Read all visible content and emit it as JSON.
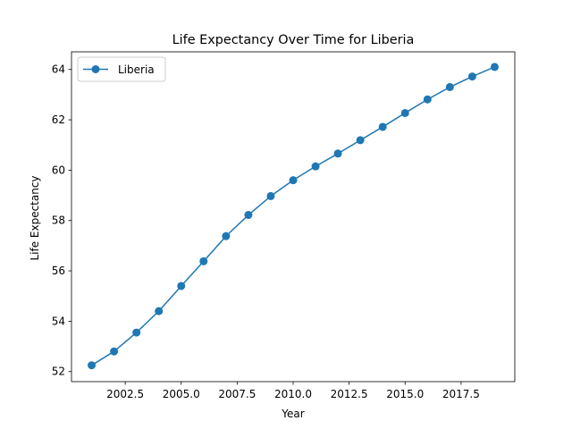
{
  "chart_data": {
    "type": "line",
    "title": "Life Expectancy Over Time for Liberia",
    "xlabel": "Year",
    "ylabel": "Life Expectancy",
    "xlim": [
      2000.1,
      2019.9
    ],
    "ylim": [
      51.6,
      64.7
    ],
    "xticks": [
      2002.5,
      2005.0,
      2007.5,
      2010.0,
      2012.5,
      2015.0,
      2017.5
    ],
    "xtick_labels": [
      "2002.5",
      "2005.0",
      "2007.5",
      "2010.0",
      "2012.5",
      "2015.0",
      "2017.5"
    ],
    "yticks": [
      52,
      54,
      56,
      58,
      60,
      62,
      64
    ],
    "ytick_labels": [
      "52",
      "54",
      "56",
      "58",
      "60",
      "62",
      "64"
    ],
    "grid": false,
    "legend_position": "top-left",
    "series": [
      {
        "name": "Liberia",
        "color": "#1f77b4",
        "marker": "circle",
        "x": [
          2001,
          2002,
          2003,
          2004,
          2005,
          2006,
          2007,
          2008,
          2009,
          2010,
          2011,
          2012,
          2013,
          2014,
          2015,
          2016,
          2017,
          2018,
          2019
        ],
        "y": [
          52.25,
          52.8,
          53.55,
          54.4,
          55.4,
          56.38,
          57.38,
          58.22,
          58.97,
          59.6,
          60.15,
          60.66,
          61.19,
          61.72,
          62.27,
          62.81,
          63.3,
          63.72,
          64.1
        ]
      }
    ]
  }
}
